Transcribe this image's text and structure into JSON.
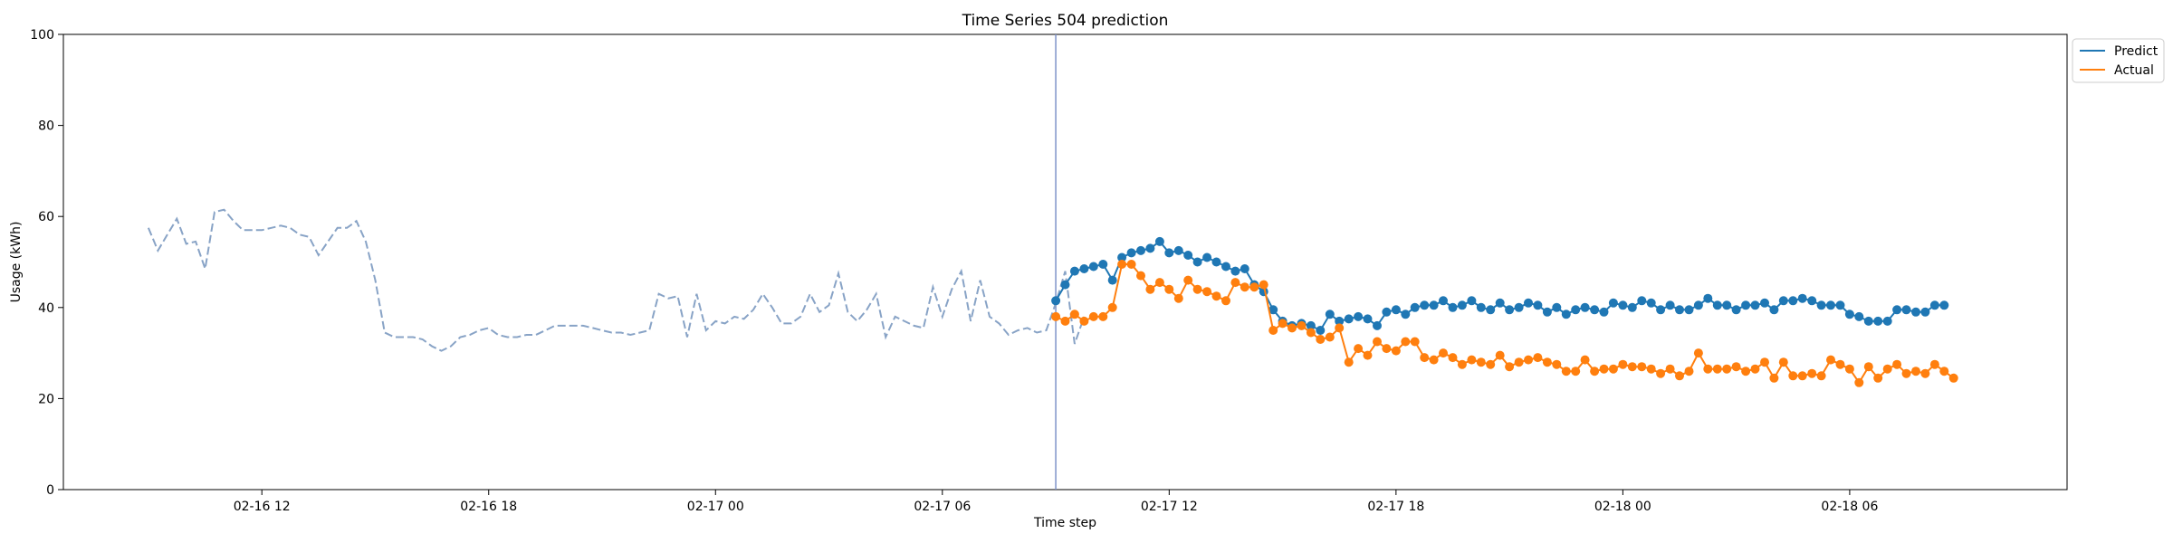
{
  "chart_data": {
    "type": "line",
    "title": "Time Series 504 prediction",
    "xlabel": "Time step",
    "ylabel": "Usage (kWh)",
    "ylim": [
      0,
      100
    ],
    "xlim": [
      "2026-02-16T06:45",
      "2026-02-18T11:45"
    ],
    "x_ticks": [
      {
        "x": "2026-02-16T12:00",
        "label": "02-16 12"
      },
      {
        "x": "2026-02-16T18:00",
        "label": "02-16 18"
      },
      {
        "x": "2026-02-17T00:00",
        "label": "02-17 00"
      },
      {
        "x": "2026-02-17T06:00",
        "label": "02-17 06"
      },
      {
        "x": "2026-02-17T12:00",
        "label": "02-17 12"
      },
      {
        "x": "2026-02-17T18:00",
        "label": "02-17 18"
      },
      {
        "x": "2026-02-18T00:00",
        "label": "02-18 00"
      },
      {
        "x": "2026-02-18T06:00",
        "label": "02-18 06"
      }
    ],
    "y_ticks": [
      {
        "y": 0,
        "label": "0"
      },
      {
        "y": 20,
        "label": "20"
      },
      {
        "y": 40,
        "label": "40"
      },
      {
        "y": 60,
        "label": "60"
      },
      {
        "y": 80,
        "label": "80"
      },
      {
        "y": 100,
        "label": "100"
      }
    ],
    "grid": false,
    "legend_position": "outside-top-right",
    "split_marker_x": "2026-02-17T09:00",
    "history": {
      "color": "#88a3c6",
      "style": "dashed",
      "start": "2026-02-16T09:00",
      "step_minutes": 15,
      "values": [
        57.5,
        52.5,
        56,
        59.5,
        54,
        54.5,
        48.5,
        61,
        61.5,
        59,
        57,
        57,
        57,
        57.5,
        58,
        57.5,
        56,
        55.5,
        51.5,
        54.5,
        57.5,
        57.5,
        59,
        54.5,
        46,
        34.5,
        33.5,
        33.5,
        33.5,
        33,
        31.5,
        30.5,
        31.5,
        33.5,
        34,
        35,
        35.5,
        34,
        33.5,
        33.5,
        34,
        34,
        35,
        36,
        36,
        36,
        36,
        35.5,
        35,
        34.5,
        34.5,
        34,
        34.5,
        35,
        43,
        42,
        42.5,
        33.5,
        43,
        35,
        37,
        36.5,
        38,
        37.5,
        39.5,
        43,
        40,
        36.5,
        36.5,
        38,
        43,
        39,
        40.5,
        47.5,
        39,
        37,
        39.5,
        43,
        33.5,
        38,
        37,
        36,
        35.5,
        44.5,
        38,
        44,
        48,
        37,
        46,
        38,
        36.5,
        34,
        35,
        35.5,
        34.5,
        35,
        41,
        48,
        32,
        38
      ]
    },
    "series": [
      {
        "name": "Predict",
        "color": "#1f77b4",
        "start": "2026-02-17T09:00",
        "step_minutes": 15,
        "values": [
          41.5,
          45,
          48,
          48.5,
          49,
          49.5,
          46,
          51,
          52,
          52.5,
          53,
          54.5,
          52,
          52.5,
          51.5,
          50,
          51,
          50,
          49,
          48,
          48.5,
          45,
          43.5,
          39.5,
          37,
          36,
          36.5,
          36,
          35,
          38.5,
          37,
          37.5,
          38,
          37.5,
          36,
          39,
          39.5,
          38.5,
          40,
          40.5,
          40.5,
          41.5,
          40,
          40.5,
          41.5,
          40,
          39.5,
          41,
          39.5,
          40,
          41,
          40.5,
          39,
          40,
          38.5,
          39.5,
          40,
          39.5,
          39,
          41,
          40.5,
          40,
          41.5,
          41,
          39.5,
          40.5,
          39.5,
          39.5,
          40.5,
          42,
          40.5,
          40.5,
          39.5,
          40.5,
          40.5,
          41,
          39.5,
          41.5,
          41.5,
          42,
          41.5,
          40.5,
          40.5,
          40.5,
          38.5,
          38,
          37,
          37,
          37,
          39.5,
          39.5,
          39,
          39,
          40.5,
          40.5
        ]
      },
      {
        "name": "Actual",
        "color": "#ff7f0e",
        "start": "2026-02-17T09:00",
        "step_minutes": 15,
        "values": [
          38,
          37,
          38.5,
          37,
          38,
          38,
          40,
          49.5,
          49.5,
          47,
          44,
          45.5,
          44,
          42,
          46,
          44,
          43.5,
          42.5,
          41.5,
          45.5,
          44.5,
          44.5,
          45,
          35,
          36.5,
          35.5,
          36,
          34.5,
          33,
          33.5,
          35.5,
          28,
          31,
          29.5,
          32.5,
          31,
          30.5,
          32.5,
          32.5,
          29,
          28.5,
          30,
          29,
          27.5,
          28.5,
          28,
          27.5,
          29.5,
          27,
          28,
          28.5,
          29,
          28,
          27.5,
          26,
          26,
          28.5,
          26,
          26.5,
          26.5,
          27.5,
          27,
          27,
          26.5,
          25.5,
          26.5,
          25,
          26,
          30,
          26.5,
          26.5,
          26.5,
          27,
          26,
          26.5,
          28,
          24.5,
          28,
          25,
          25,
          25.5,
          25,
          28.5,
          27.5,
          26.5,
          23.5,
          27,
          24.5,
          26.5,
          27.5,
          25.5,
          26,
          25.5,
          27.5,
          26,
          24.5
        ]
      }
    ]
  }
}
